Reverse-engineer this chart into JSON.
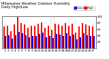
{
  "title": "Milwaukee Weather Outdoor Humidity",
  "subtitle": "Daily High/Low",
  "high_color": "#ff0000",
  "low_color": "#0000ff",
  "background_color": "#ffffff",
  "ylim": [
    0,
    100
  ],
  "yticks": [
    20,
    40,
    60,
    80,
    100
  ],
  "days": [
    1,
    2,
    3,
    4,
    5,
    6,
    7,
    8,
    9,
    10,
    11,
    12,
    13,
    14,
    15,
    16,
    17,
    18,
    19,
    20,
    21,
    22,
    23,
    24,
    25,
    26,
    27
  ],
  "highs": [
    68,
    72,
    55,
    75,
    98,
    80,
    75,
    65,
    72,
    70,
    78,
    82,
    65,
    70,
    58,
    78,
    75,
    72,
    80,
    72,
    78,
    50,
    68,
    80,
    75,
    72,
    68
  ],
  "lows": [
    38,
    42,
    30,
    42,
    52,
    48,
    42,
    35,
    40,
    38,
    45,
    50,
    35,
    40,
    32,
    45,
    43,
    40,
    48,
    40,
    44,
    28,
    35,
    48,
    42,
    40,
    38
  ],
  "vline_x": [
    14.5,
    15.5
  ],
  "bar_width": 0.42,
  "title_fontsize": 3.8,
  "tick_fontsize": 3.2,
  "legend_fontsize": 3.2
}
